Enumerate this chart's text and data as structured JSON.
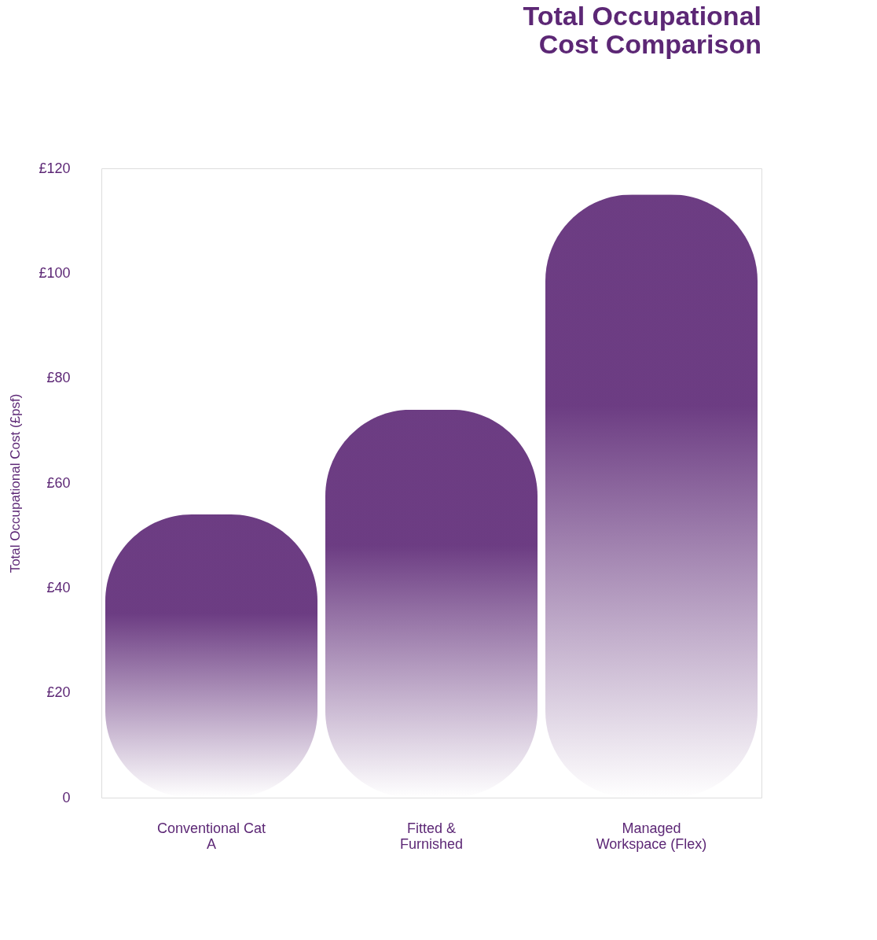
{
  "chart_data": {
    "type": "bar",
    "title": "Total Occupational Cost Comparison",
    "ylabel": "Total Occupational Cost (£psf)",
    "categories": [
      "Conventional Cat A",
      "Fitted & Furnished",
      "Managed Workspace (Flex)"
    ],
    "values": [
      54,
      74,
      115
    ],
    "color": "#5c2775",
    "ylim": [
      0,
      120
    ],
    "yticks": [
      0,
      {
        "value": 20,
        "label": "£20"
      },
      {
        "value": 40,
        "label": "£40"
      },
      {
        "value": 60,
        "label": "£60"
      },
      {
        "value": 80,
        "label": "£80"
      },
      {
        "value": 100,
        "label": "£100"
      },
      {
        "value": 120,
        "label": "£120"
      }
    ],
    "grid": false
  }
}
